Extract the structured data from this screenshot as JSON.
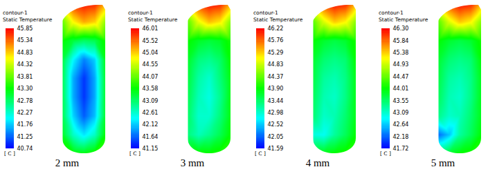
{
  "chart_data": [
    {
      "type": "contour",
      "caption": "2 mm",
      "tick_labels": false,
      "colorbar": {
        "title": "contour-1",
        "label": "Static Temperature",
        "unit": "[ C ]",
        "range": [
          40.74,
          45.85
        ],
        "ticks": [
          40.74,
          41.25,
          41.76,
          42.27,
          42.78,
          {
            "value": 43.3,
            "label": "43.30"
          },
          43.81,
          44.32,
          44.83,
          45.34,
          45.85
        ]
      },
      "cells": [
        [
          44.6,
          45.6,
          45.8,
          45.7,
          45.0
        ],
        [
          43.8,
          44.6,
          45.0,
          44.8,
          44.0
        ],
        [
          43.3,
          43.0,
          42.8,
          42.9,
          43.4
        ],
        [
          43.0,
          42.0,
          41.4,
          41.8,
          43.2
        ],
        [
          42.9,
          41.6,
          41.0,
          41.6,
          43.1
        ],
        [
          42.9,
          41.6,
          41.0,
          41.6,
          43.1
        ],
        [
          42.9,
          41.8,
          41.2,
          41.7,
          43.1
        ],
        [
          43.1,
          42.3,
          41.9,
          42.3,
          43.3
        ],
        [
          43.5,
          43.3,
          43.2,
          43.4,
          43.6
        ]
      ]
    },
    {
      "type": "contour",
      "caption": "3 mm",
      "tick_labels": false,
      "colorbar": {
        "title": "contour-1",
        "label": "Static Temperature",
        "unit": "[ C ]",
        "range": [
          41.15,
          46.01
        ],
        "ticks": [
          41.15,
          41.64,
          42.12,
          42.61,
          43.09,
          43.58,
          44.07,
          44.55,
          45.04,
          45.52,
          46.01
        ]
      },
      "cells": [
        [
          44.8,
          45.7,
          46.0,
          45.9,
          45.2
        ],
        [
          44.0,
          44.7,
          45.1,
          44.9,
          44.2
        ],
        [
          43.6,
          43.4,
          43.3,
          43.4,
          43.7
        ],
        [
          43.4,
          43.0,
          42.9,
          43.1,
          43.6
        ],
        [
          43.3,
          42.8,
          42.6,
          43.0,
          43.5
        ],
        [
          43.2,
          42.7,
          42.5,
          42.9,
          43.5
        ],
        [
          43.1,
          42.6,
          42.6,
          43.0,
          43.5
        ],
        [
          43.0,
          42.7,
          42.9,
          43.2,
          43.6
        ],
        [
          43.5,
          43.6,
          43.6,
          43.7,
          43.8
        ]
      ]
    },
    {
      "type": "contour",
      "caption": "4 mm",
      "tick_labels": false,
      "colorbar": {
        "title": "contour-1",
        "label": "Static Temperature",
        "unit": "[ C ]",
        "range": [
          41.59,
          46.22
        ],
        "ticks": [
          41.59,
          42.05,
          42.52,
          42.98,
          43.44,
          {
            "value": 43.9,
            "label": "43.90"
          },
          44.37,
          44.83,
          45.29,
          45.76,
          46.22
        ]
      },
      "cells": [
        [
          45.0,
          45.9,
          46.2,
          46.1,
          45.4
        ],
        [
          44.3,
          44.9,
          45.3,
          45.1,
          44.5
        ],
        [
          43.9,
          43.7,
          43.6,
          43.7,
          44.0
        ],
        [
          43.7,
          43.4,
          43.3,
          43.4,
          43.9
        ],
        [
          43.6,
          43.2,
          43.1,
          43.3,
          43.8
        ],
        [
          43.5,
          43.1,
          43.0,
          43.3,
          43.8
        ],
        [
          43.4,
          43.0,
          43.1,
          43.4,
          43.8
        ],
        [
          42.9,
          42.8,
          43.2,
          43.5,
          43.9
        ],
        [
          43.7,
          43.8,
          43.9,
          44.0,
          44.1
        ]
      ]
    },
    {
      "type": "contour",
      "caption": "5 mm",
      "tick_labels": false,
      "colorbar": {
        "title": "contour-1",
        "label": "Static Temperature",
        "unit": "[ C ]",
        "range": [
          41.72,
          46.3
        ],
        "ticks": [
          41.72,
          42.18,
          42.64,
          43.09,
          43.55,
          44.01,
          44.47,
          44.93,
          45.38,
          45.84,
          {
            "value": 46.3,
            "label": "46.30"
          }
        ]
      },
      "cells": [
        [
          45.1,
          46.0,
          46.3,
          46.2,
          45.5
        ],
        [
          44.4,
          45.0,
          45.4,
          45.2,
          44.6
        ],
        [
          44.0,
          43.8,
          43.7,
          43.8,
          44.1
        ],
        [
          43.8,
          43.5,
          43.4,
          43.5,
          44.0
        ],
        [
          43.7,
          43.3,
          43.2,
          43.4,
          43.9
        ],
        [
          43.6,
          43.2,
          43.1,
          43.4,
          43.9
        ],
        [
          43.4,
          43.1,
          43.2,
          43.5,
          43.9
        ],
        [
          42.2,
          42.6,
          43.3,
          43.6,
          44.0
        ],
        [
          43.6,
          43.8,
          44.0,
          44.1,
          44.2
        ]
      ]
    }
  ]
}
